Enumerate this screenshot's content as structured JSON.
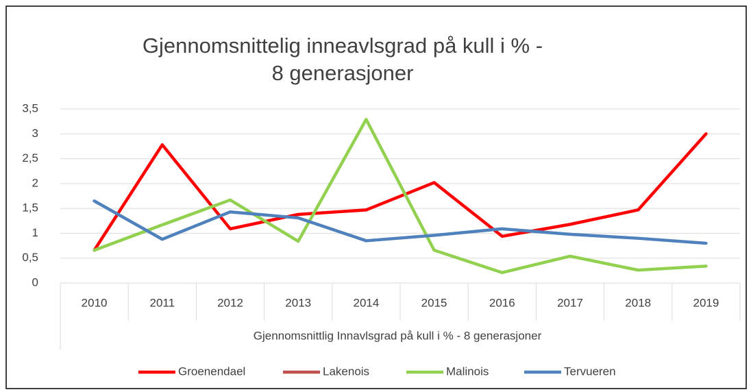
{
  "chart_data": {
    "type": "line",
    "title": [
      "Gjennomsnittelig inneavlsgrad på kull i % -",
      "8 generasjoner"
    ],
    "x_label": "Gjennomsnittlig Innavlsgrad på kull i % - 8 generasjoner",
    "categories": [
      "2010",
      "2011",
      "2012",
      "2013",
      "2014",
      "2015",
      "2016",
      "2017",
      "2018",
      "2019"
    ],
    "series": [
      {
        "name": "Groenendael",
        "color": "#ff0000",
        "values": [
          0.66,
          2.78,
          1.09,
          1.38,
          1.47,
          2.02,
          0.94,
          1.18,
          1.47,
          3.0
        ]
      },
      {
        "name": "Lakenois",
        "color": "#c0504d",
        "values": [
          null,
          null,
          null,
          null,
          null,
          null,
          null,
          null,
          null,
          null
        ]
      },
      {
        "name": "Malinois",
        "color": "#92d050",
        "values": [
          0.66,
          1.17,
          1.67,
          0.84,
          3.29,
          0.66,
          0.21,
          0.54,
          0.26,
          0.34
        ]
      },
      {
        "name": "Tervueren",
        "color": "#4f81bd",
        "values": [
          1.65,
          0.88,
          1.43,
          1.31,
          0.85,
          0.96,
          1.09,
          0.98,
          0.9,
          0.8
        ]
      }
    ],
    "ylim": [
      0,
      3.5
    ],
    "yticks": [
      0,
      {
        "value": 0.5,
        "label": "0,5"
      },
      1,
      {
        "value": 1.5,
        "label": "1,5"
      },
      2,
      {
        "value": 2.5,
        "label": "2,5"
      },
      3,
      {
        "value": 3.5,
        "label": "3,5"
      }
    ],
    "grid": true,
    "legend": "bottom"
  }
}
